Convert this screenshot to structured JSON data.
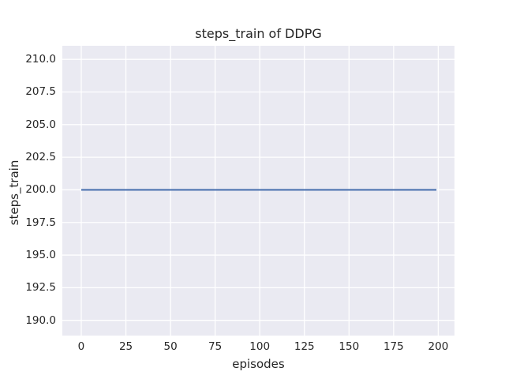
{
  "chart_data": {
    "type": "line",
    "title": "steps_train of DDPG",
    "xlabel": "episodes",
    "ylabel": "steps_train",
    "xlim": [
      -10.6,
      209.1
    ],
    "ylim": [
      188.83,
      211.04
    ],
    "grid": true,
    "legend_position": "none",
    "xticks": [
      {
        "v": 0,
        "label": "0"
      },
      {
        "v": 25,
        "label": "25"
      },
      {
        "v": 50,
        "label": "50"
      },
      {
        "v": 75,
        "label": "75"
      },
      {
        "v": 100,
        "label": "100"
      },
      {
        "v": 125,
        "label": "125"
      },
      {
        "v": 150,
        "label": "150"
      },
      {
        "v": 175,
        "label": "175"
      },
      {
        "v": 200,
        "label": "200"
      }
    ],
    "yticks": [
      {
        "v": 190.0,
        "label": "190.0"
      },
      {
        "v": 192.5,
        "label": "192.5"
      },
      {
        "v": 195.0,
        "label": "195.0"
      },
      {
        "v": 197.5,
        "label": "197.5"
      },
      {
        "v": 200.0,
        "label": "200.0"
      },
      {
        "v": 202.5,
        "label": "202.5"
      },
      {
        "v": 205.0,
        "label": "205.0"
      },
      {
        "v": 207.5,
        "label": "207.5"
      },
      {
        "v": 210.0,
        "label": "210.0"
      }
    ],
    "series": [
      {
        "name": "steps_train",
        "color": "#4c72b0",
        "constant_value": 200,
        "x_start": 0,
        "x_end": 199,
        "points": [
          [
            0,
            200
          ],
          [
            199,
            200
          ]
        ]
      }
    ],
    "colors": {
      "figure_bg": "#ffffff",
      "axes_bg": "#eaeaf2",
      "grid": "#ffffff",
      "text": "#262626",
      "line": "#4c72b0"
    }
  }
}
